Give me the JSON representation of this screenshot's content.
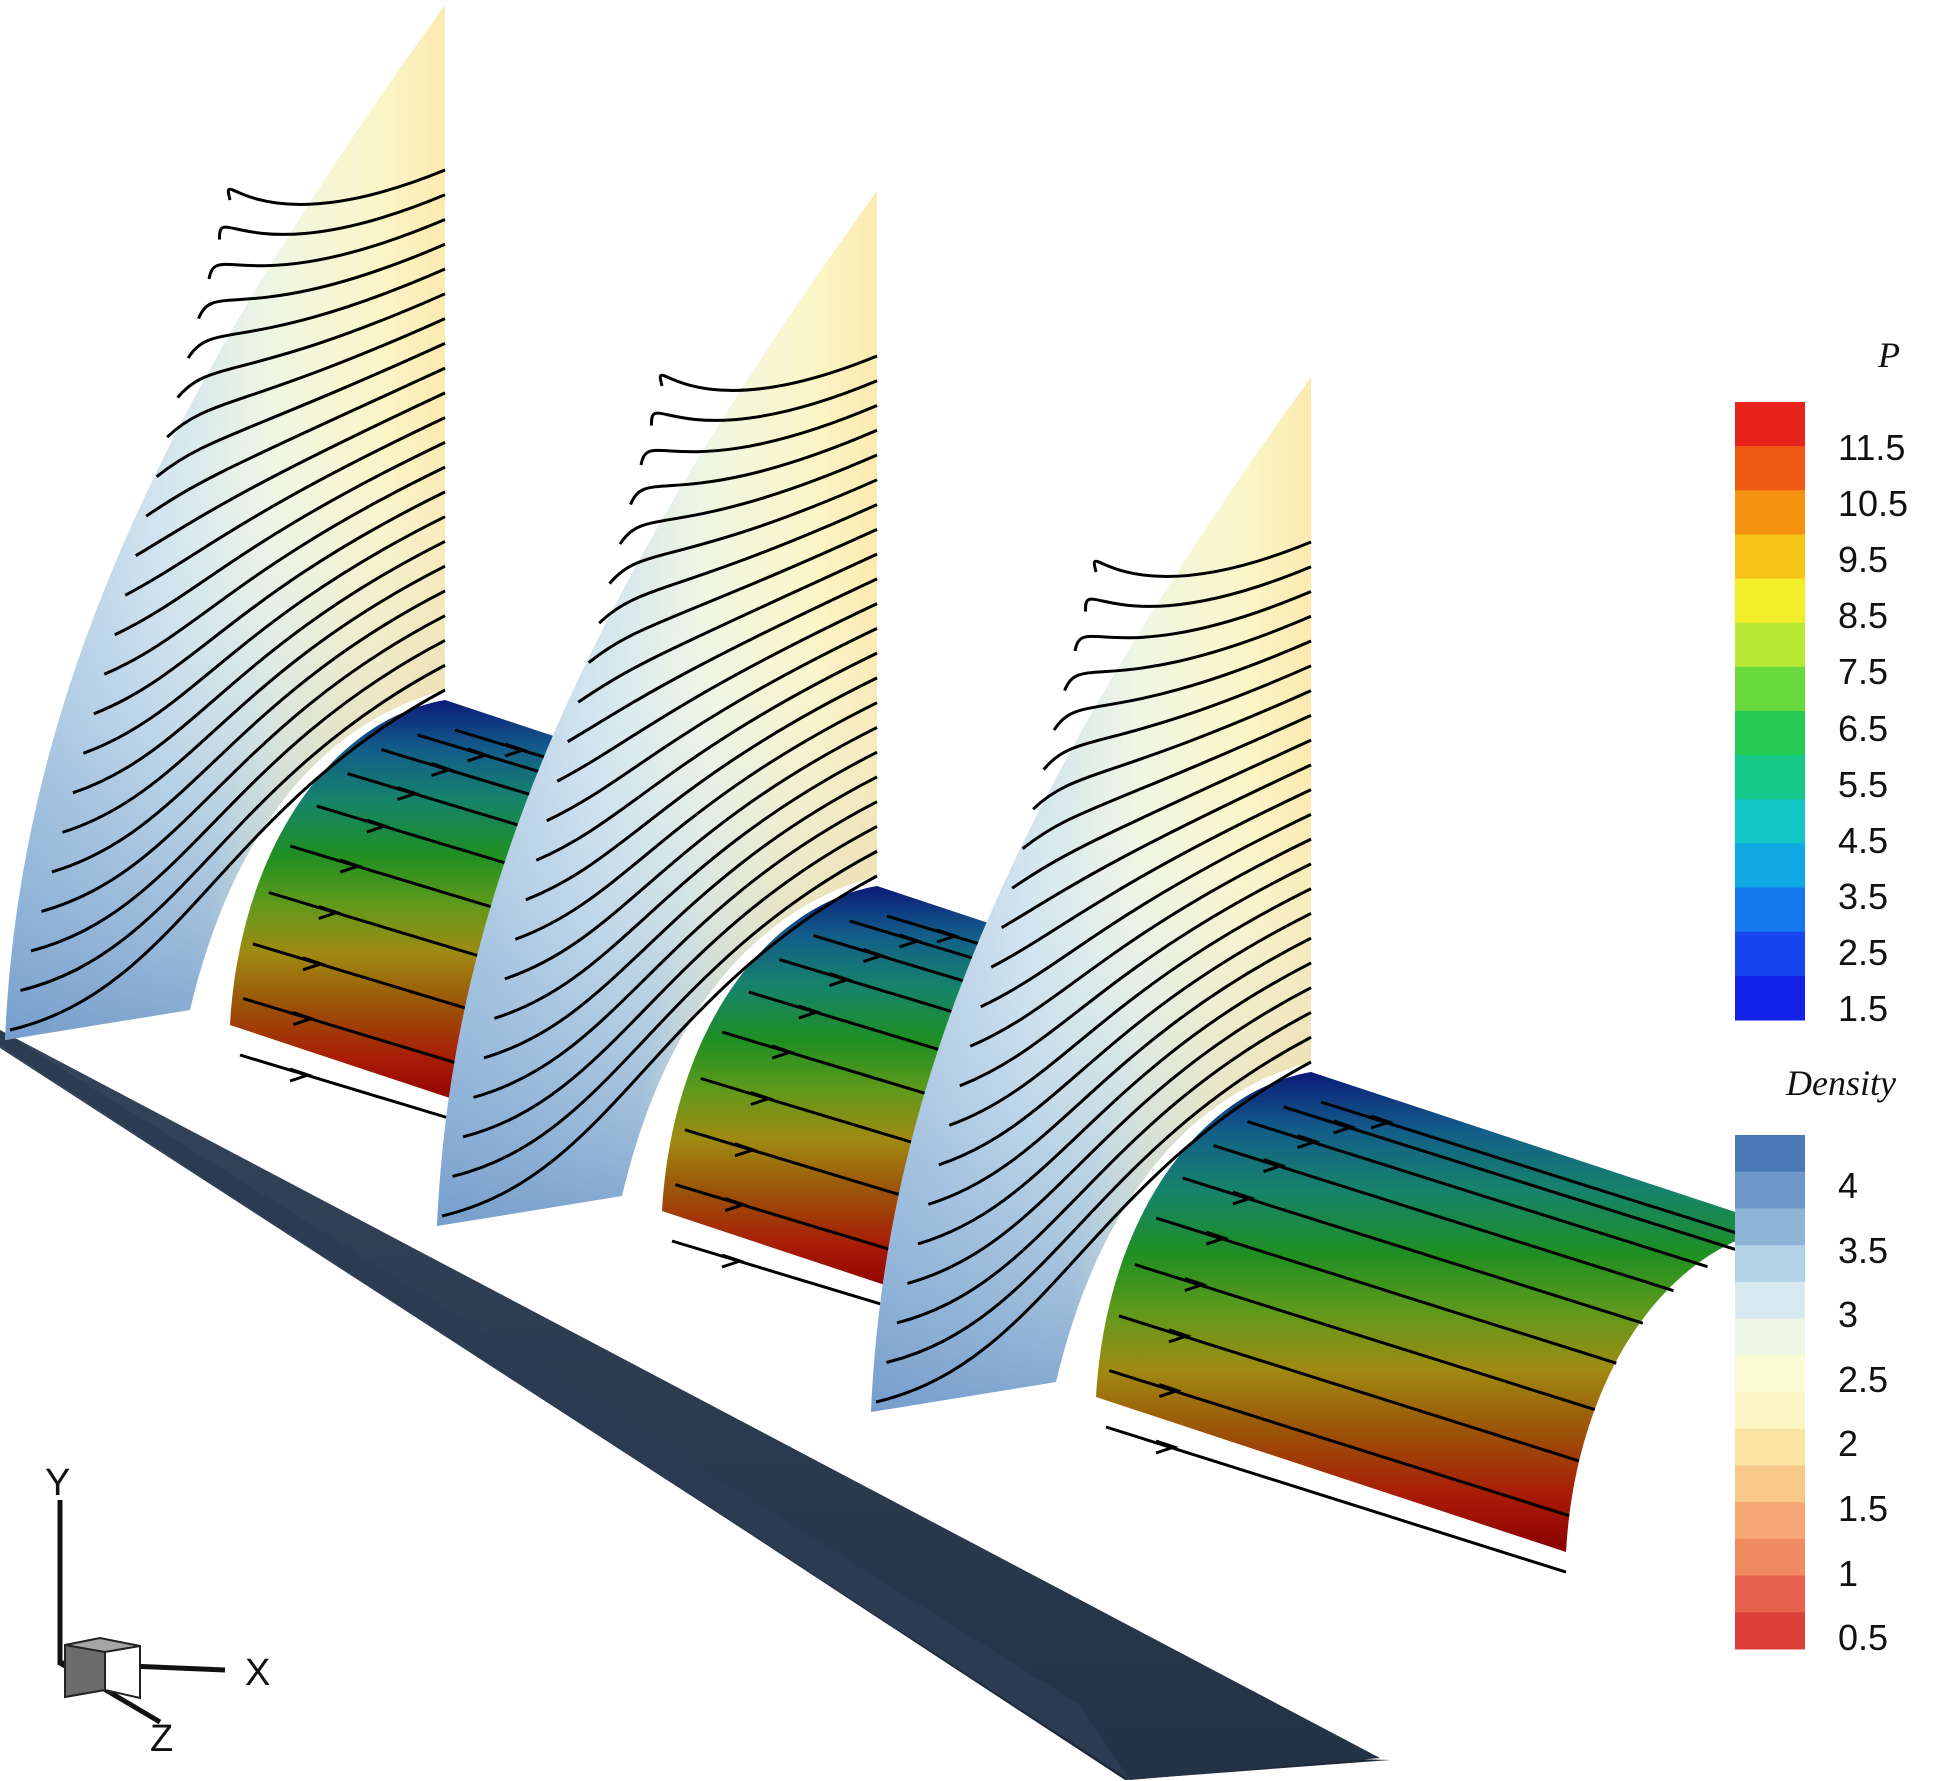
{
  "legend_p": {
    "title": "P",
    "ticks": [
      "11.5",
      "10.5",
      "9.5",
      "8.5",
      "7.5",
      "6.5",
      "5.5",
      "4.5",
      "3.5",
      "2.5",
      "1.5"
    ],
    "colors_top_to_bottom": [
      "#e8221c",
      "#f05a13",
      "#f5920f",
      "#f7c51a",
      "#f2ef2a",
      "#b8e834",
      "#69d93e",
      "#25cc52",
      "#16c98a",
      "#12c8c6",
      "#11a8e6",
      "#1678ef",
      "#1845ee",
      "#1322e8"
    ]
  },
  "legend_density": {
    "title": "Density",
    "ticks": [
      "4",
      "3.5",
      "3",
      "2.5",
      "2",
      "1.5",
      "1",
      "0.5"
    ],
    "colors_top_to_bottom": [
      "#4b79b6",
      "#6d98c8",
      "#8eb4d8",
      "#b4d2e6",
      "#d7e9f0",
      "#eef6e6",
      "#f8fbd4",
      "#fbf5c4",
      "#fbe3a3",
      "#f9c989",
      "#f6a773",
      "#f08a5f",
      "#e8624e",
      "#de3f3a"
    ]
  },
  "axes_triad": {
    "x_label": "X",
    "y_label": "Y",
    "z_label": "Z"
  }
}
